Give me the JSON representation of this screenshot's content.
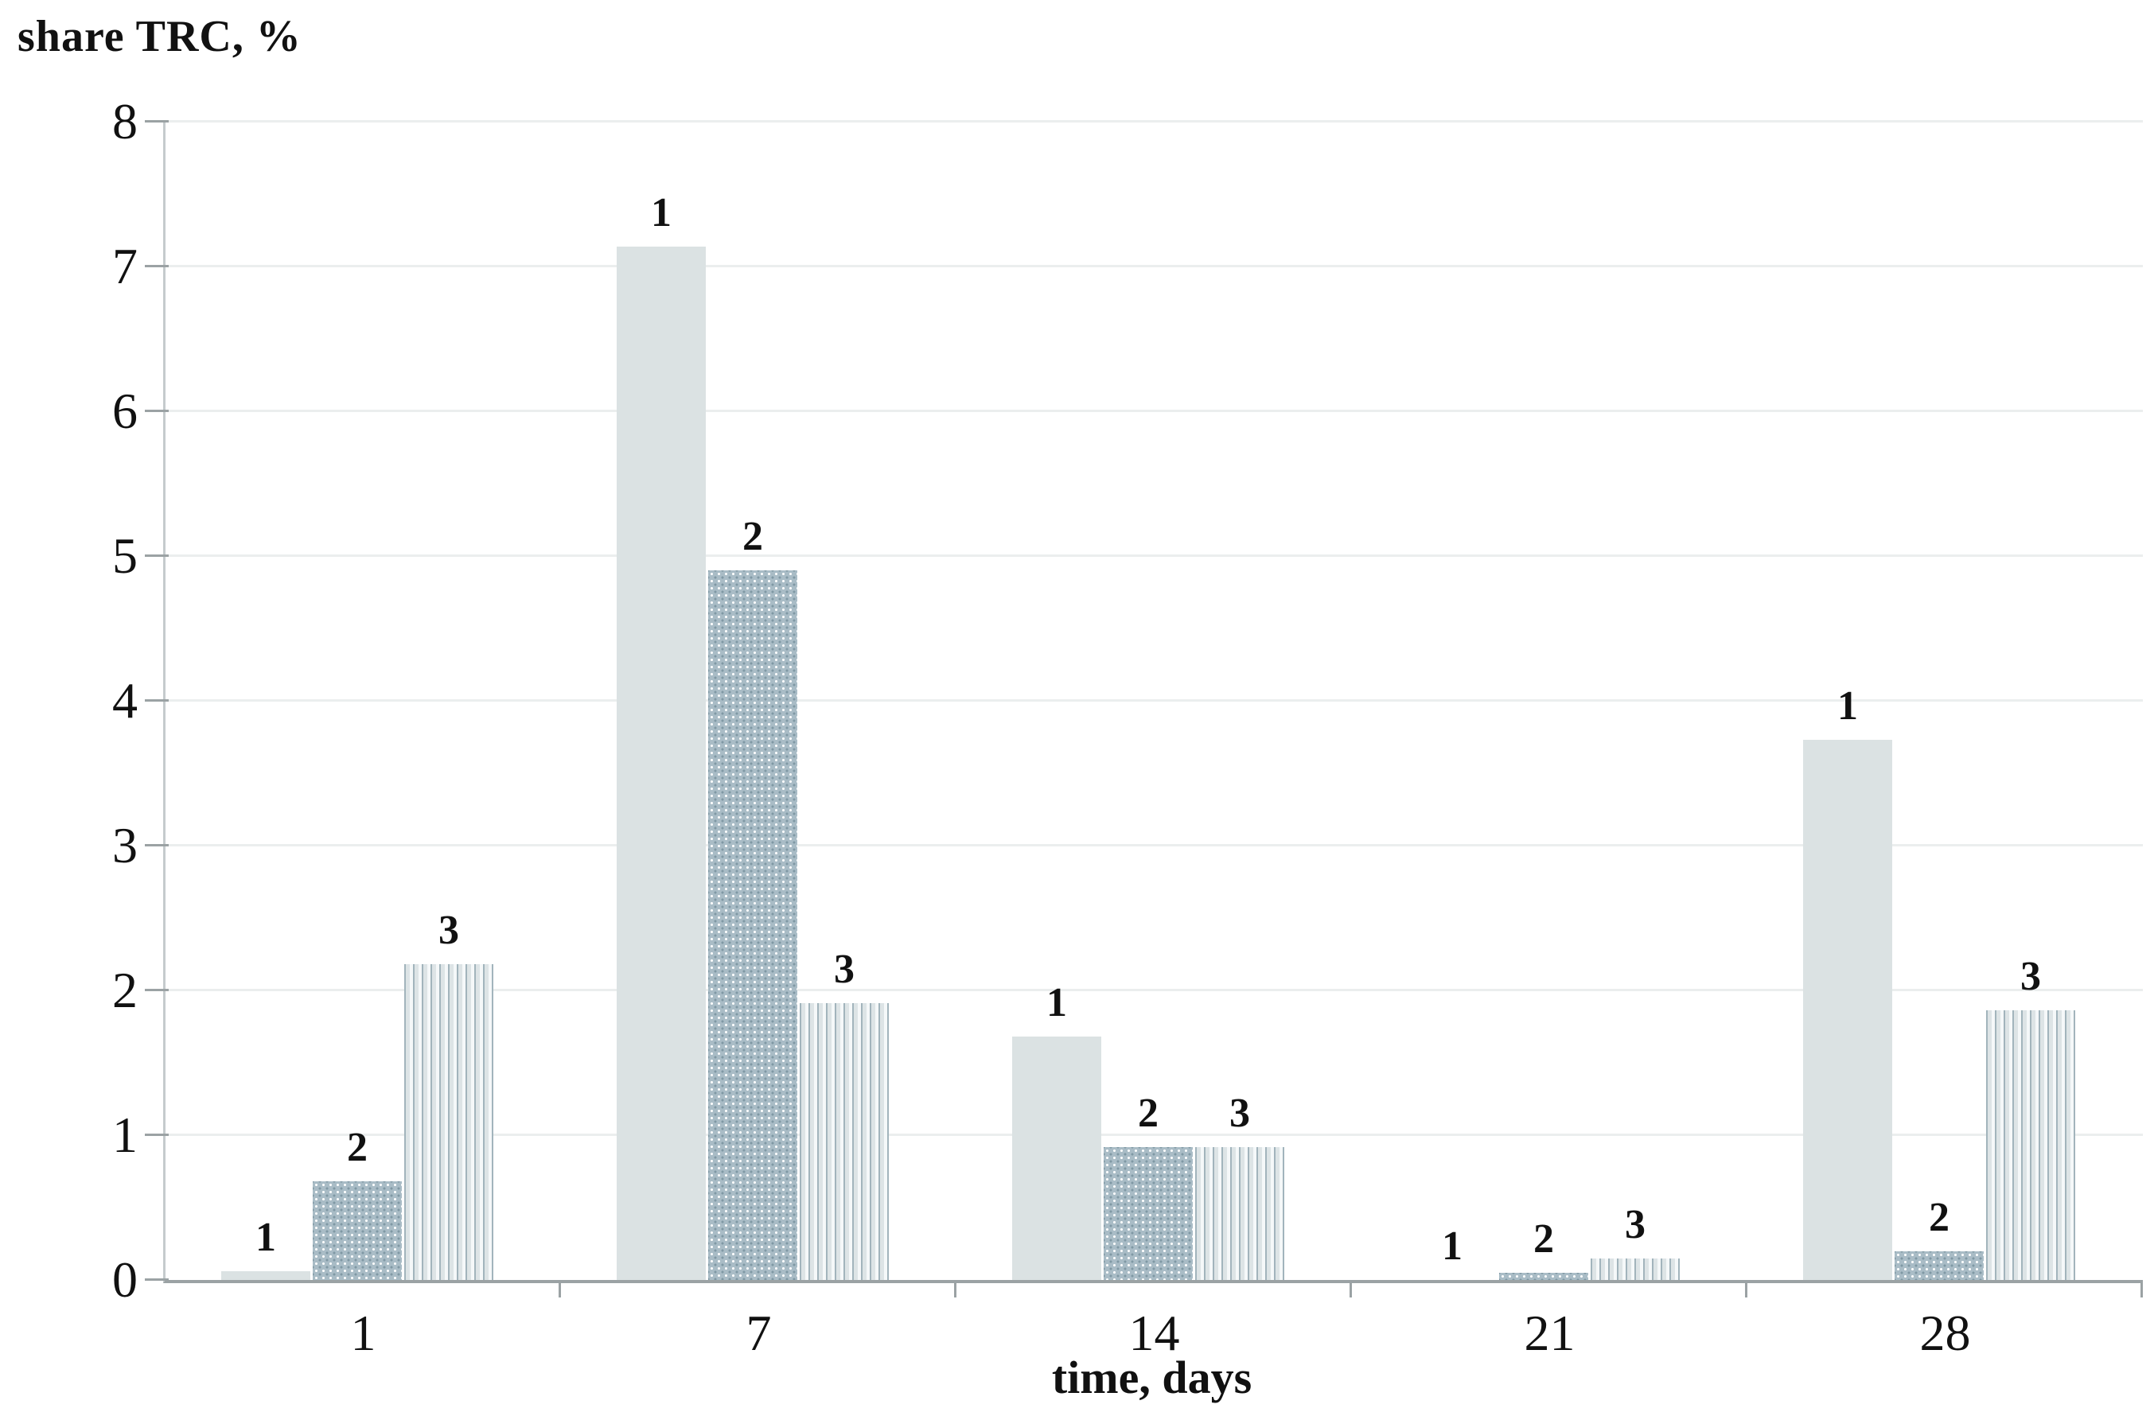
{
  "chart_data": {
    "type": "bar",
    "title": "",
    "ylabel": "share TRC, %",
    "xlabel": "time, days",
    "categories": [
      "1",
      "7",
      "14",
      "21",
      "28"
    ],
    "series": [
      {
        "name": "1",
        "pattern": "solid",
        "values": [
          0.06,
          7.14,
          1.68,
          0,
          3.73
        ]
      },
      {
        "name": "2",
        "pattern": "dots",
        "values": [
          0.68,
          4.9,
          0.92,
          0.05,
          0.2
        ]
      },
      {
        "name": "3",
        "pattern": "vstripes",
        "values": [
          2.18,
          1.91,
          0.92,
          0.15,
          1.86
        ]
      }
    ],
    "ylim": [
      0,
      8
    ],
    "yticks": [
      0,
      1,
      2,
      3,
      4,
      5,
      6,
      7,
      8
    ],
    "grid": true,
    "bar_labels": true,
    "legend_position": "none",
    "colors": {
      "bar1": "#dbe2e3",
      "bar2_base": "#a9bcc6",
      "bar2_dot_light": "#ffffff",
      "bar2_dot_dark": "#7f98a4",
      "bar3_line": "#a2b4bc",
      "bar3_fill": "#dde4e6",
      "bar3_bg": "#f5f8f9",
      "grid": "#ebeeee",
      "axis_y": "#c5cbcd",
      "axis_x": "#9ba2a4",
      "text": "#111111"
    }
  }
}
